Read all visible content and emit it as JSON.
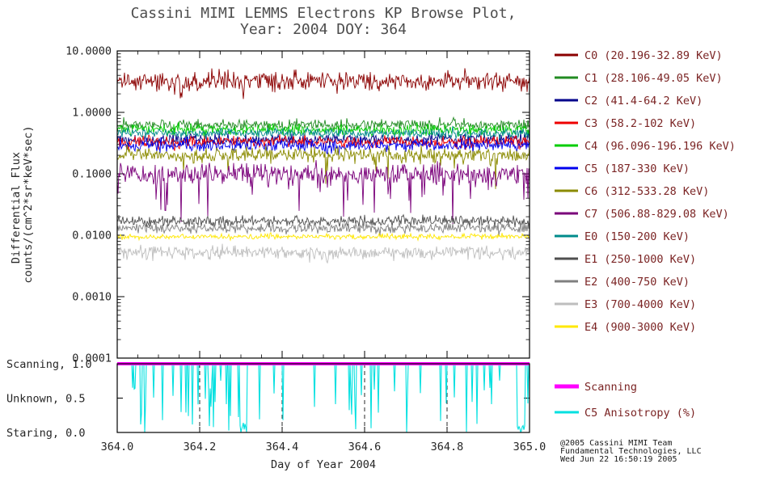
{
  "chart_data": {
    "type": "line",
    "title_line1": "Cassini MIMI LEMMS Electrons KP Browse Plot,",
    "title_line2": "Year: 2004 DOY: 364",
    "xlabel": "Day of Year 2004",
    "ylabel_line1": "Differential Flux",
    "ylabel_line2": "counts/(cm^2*sr*keV*sec)",
    "x_range": [
      364.0,
      365.0
    ],
    "x_tick_labels": [
      "364.0",
      "364.2",
      "364.4",
      "364.6",
      "364.8",
      "365.0"
    ],
    "y_scale": "log",
    "y_range": [
      0.0001,
      10.0
    ],
    "y_tick_labels": [
      "10.0000",
      "1.0000",
      "0.1000",
      "0.0100",
      "0.0010",
      "0.0001"
    ],
    "legend_position": "right",
    "series": [
      {
        "name": "C0",
        "label": "C0 (20.196-32.89 KeV)",
        "color": "#8B0000",
        "level": 3.2,
        "noise": 0.075,
        "spike_prob": 0.03,
        "spike_depth": 0.25
      },
      {
        "name": "C1",
        "label": "C1 (28.106-49.05 KeV)",
        "color": "#228B22",
        "level": 0.62,
        "noise": 0.045
      },
      {
        "name": "C2",
        "label": "C2 (41.4-64.2 KeV)",
        "color": "#00008B",
        "level": 0.36,
        "noise": 0.05
      },
      {
        "name": "C3",
        "label": "C3 (58.2-102 KeV)",
        "color": "#EE0000",
        "level": 0.33,
        "noise": 0.05
      },
      {
        "name": "C4",
        "label": "C4 (96.096-196.196 KeV)",
        "color": "#00CD00",
        "level": 0.52,
        "noise": 0.045
      },
      {
        "name": "C5",
        "label": "C5 (187-330 KeV)",
        "color": "#0000EE",
        "level": 0.29,
        "noise": 0.05
      },
      {
        "name": "C6",
        "label": "C6 (312-533.28 KeV)",
        "color": "#8B8B00",
        "level": 0.2,
        "noise": 0.06,
        "spike_prob": 0.04,
        "spike_depth": 0.5
      },
      {
        "name": "C7",
        "label": "C7 (506.88-829.08 KeV)",
        "color": "#7A007A",
        "level": 0.1,
        "noise": 0.09,
        "spike_prob": 0.07,
        "spike_depth": 0.85
      },
      {
        "name": "E0",
        "label": "E0 (150-200 KeV)",
        "color": "#008B8B",
        "level": 0.46,
        "noise": 0.035
      },
      {
        "name": "E1",
        "label": "E1 (250-1000 KeV)",
        "color": "#4F4F4F",
        "level": 0.017,
        "noise": 0.045
      },
      {
        "name": "E2",
        "label": "E2 (400-750 KeV)",
        "color": "#7F7F7F",
        "level": 0.013,
        "noise": 0.04
      },
      {
        "name": "E3",
        "label": "E3 (700-4000 KeV)",
        "color": "#BEBEBE",
        "level": 0.0052,
        "noise": 0.055
      },
      {
        "name": "E4",
        "label": "E4 (900-3000 KeV)",
        "color": "#FFE800",
        "level": 0.0095,
        "noise": 0.022
      }
    ],
    "bottom_panel": {
      "row_labels": [
        "Scanning, 1.0",
        "Unknown, 0.5",
        "Staring, 0.0"
      ],
      "y_range": [
        0.0,
        1.0
      ],
      "series": [
        {
          "name": "Scanning",
          "label": "Scanning",
          "color": "#FF00FF",
          "value": 1.0
        },
        {
          "name": "C5-Anisotropy",
          "label": "C5 Anisotropy (%)",
          "color": "#00E0E0",
          "baseline": 1.0,
          "spike_range": [
            0.0,
            1.0
          ]
        }
      ]
    },
    "colors": {
      "legend_text": "#7B2424",
      "title_text": "#4D4D4D",
      "axis_text": "#262626",
      "frame": "#000000",
      "background": "#FFFFFF"
    }
  },
  "credit_lines": [
    "@2005 Cassini MIMI Team",
    "Fundamental Technologies, LLC",
    "Wed Jun 22 16:50:19 2005"
  ]
}
